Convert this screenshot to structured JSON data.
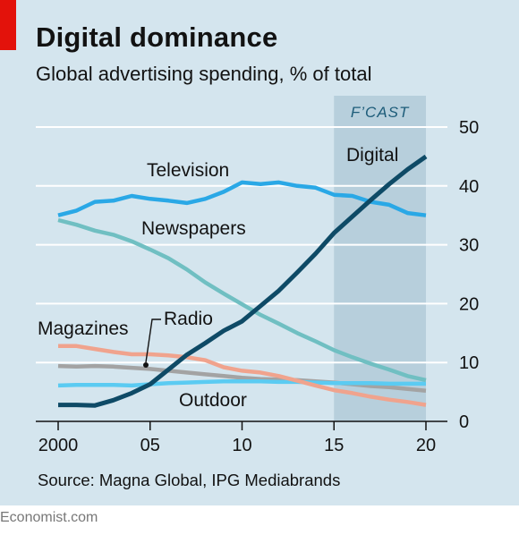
{
  "title": "Digital dominance",
  "subtitle": "Global advertising spending, % of total",
  "source": "Source: Magna Global, IPG Mediabrands",
  "brand": "Economist.com",
  "forecast_label": "F’CAST",
  "x_tick_labels": [
    "2000",
    "05",
    "10",
    "15",
    "20"
  ],
  "y_tick_labels": [
    "0",
    "10",
    "20",
    "30",
    "40",
    "50"
  ],
  "colors": {
    "panel": "#d4e5ee",
    "forecast_band": "#b7cfdc",
    "forecast_text": "#1d5c79",
    "accent_red": "#e3120b",
    "television": "#2aa8e6",
    "digital": "#0e4a66",
    "newspapers": "#70bfc2",
    "magazines": "#f0a38d",
    "radio": "#a3a3a3",
    "outdoor": "#5bcbf2"
  },
  "chart_data": {
    "type": "line",
    "title": "Digital dominance",
    "subtitle": "Global advertising spending, % of total",
    "xlabel": "",
    "ylabel": "",
    "xlim": [
      2000,
      2020
    ],
    "ylim": [
      0,
      50
    ],
    "y_axis_side": "right",
    "grid": "horizontal",
    "forecast_from": 2015,
    "x": [
      2000,
      2001,
      2002,
      2003,
      2004,
      2005,
      2006,
      2007,
      2008,
      2009,
      2010,
      2011,
      2012,
      2013,
      2014,
      2015,
      2016,
      2017,
      2018,
      2019,
      2020
    ],
    "series": [
      {
        "name": "Television",
        "color": "#2aa8e6",
        "values": [
          35.0,
          35.8,
          37.3,
          37.5,
          38.3,
          37.8,
          37.5,
          37.1,
          37.8,
          39.0,
          40.6,
          40.3,
          40.6,
          40.0,
          39.7,
          38.5,
          38.3,
          37.3,
          36.8,
          35.4,
          35.0
        ]
      },
      {
        "name": "Digital",
        "color": "#0e4a66",
        "values": [
          2.8,
          2.8,
          2.7,
          3.6,
          4.8,
          6.3,
          8.8,
          11.3,
          13.3,
          15.4,
          17.0,
          19.6,
          22.2,
          25.3,
          28.5,
          32.0,
          34.8,
          37.6,
          40.3,
          42.8,
          45.0
        ]
      },
      {
        "name": "Newspapers",
        "color": "#70bfc2",
        "values": [
          34.2,
          33.4,
          32.4,
          31.7,
          30.6,
          29.2,
          27.7,
          25.8,
          23.6,
          21.7,
          19.9,
          18.1,
          16.6,
          15.0,
          13.6,
          12.1,
          10.9,
          9.8,
          8.8,
          7.7,
          7.0
        ]
      },
      {
        "name": "Magazines",
        "color": "#f0a38d",
        "values": [
          12.8,
          12.8,
          12.3,
          11.8,
          11.4,
          11.4,
          11.2,
          10.9,
          10.4,
          9.2,
          8.6,
          8.3,
          7.7,
          6.9,
          6.1,
          5.3,
          4.8,
          4.2,
          3.7,
          3.3,
          2.8
        ]
      },
      {
        "name": "Radio",
        "color": "#a3a3a3",
        "values": [
          9.4,
          9.3,
          9.4,
          9.3,
          9.1,
          8.9,
          8.6,
          8.3,
          8.0,
          7.7,
          7.4,
          7.2,
          7.1,
          7.0,
          6.8,
          6.6,
          6.3,
          6.0,
          5.8,
          5.5,
          5.2
        ]
      },
      {
        "name": "Outdoor",
        "color": "#5bcbf2",
        "values": [
          6.1,
          6.2,
          6.2,
          6.2,
          6.1,
          6.3,
          6.5,
          6.6,
          6.7,
          6.8,
          6.8,
          6.8,
          6.7,
          6.7,
          6.6,
          6.5,
          6.5,
          6.5,
          6.4,
          6.4,
          6.4
        ]
      }
    ]
  }
}
